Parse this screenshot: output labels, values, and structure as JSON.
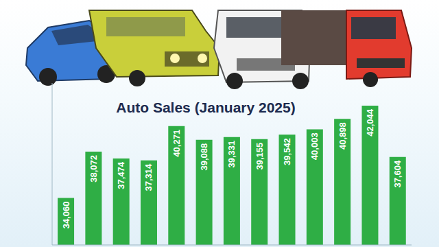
{
  "chart_data": {
    "type": "bar",
    "title": "Auto Sales (January 2025)",
    "categories": [
      null,
      null,
      null,
      null,
      null,
      null,
      null,
      null,
      null,
      null,
      null,
      null,
      null
    ],
    "values": [
      34060,
      38072,
      37474,
      37314,
      40271,
      39088,
      39331,
      39155,
      39542,
      40003,
      40898,
      42044,
      37604
    ],
    "value_labels": [
      "34,060",
      "38,072",
      "37,474",
      "37,314",
      "40,271",
      "39,088",
      "39,331",
      "39,155",
      "39,542",
      "40,003",
      "40,898",
      "42,044",
      "37,604"
    ],
    "color": "#2fae45",
    "ylim": [
      30000,
      44000
    ],
    "yticks": [],
    "grid": false,
    "data_labels": true,
    "tick_labels": false
  }
}
